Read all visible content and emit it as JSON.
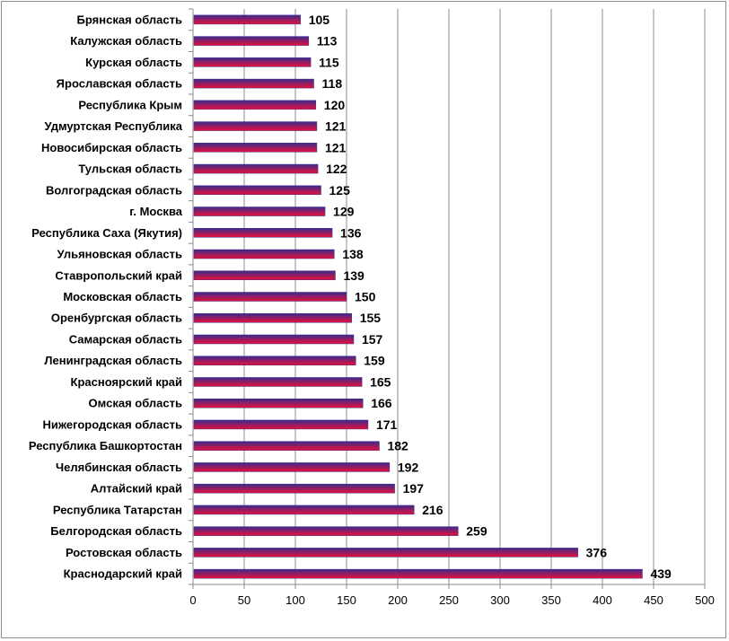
{
  "chart_data": {
    "type": "bar",
    "orientation": "horizontal",
    "title": "",
    "xlabel": "",
    "ylabel": "",
    "xlim": [
      0,
      500
    ],
    "x_ticks": [
      0,
      50,
      100,
      150,
      200,
      250,
      300,
      350,
      400,
      450,
      500
    ],
    "grid": true,
    "legend": "none",
    "bar_gradient": [
      "#3b2a8c",
      "#e8103a"
    ],
    "categories": [
      "Брянская область",
      "Калужская область",
      "Курская область",
      "Ярославская область",
      "Республика Крым",
      "Удмуртская Республика",
      "Новосибирская область",
      "Тульская область",
      "Волгоградская область",
      "г. Москва",
      "Республика Саха (Якутия)",
      "Ульяновская область",
      "Ставропольский край",
      "Московская область",
      "Оренбургская область",
      "Самарская область",
      "Ленинградская область",
      "Красноярский край",
      "Омская область",
      "Нижегородская область",
      "Республика Башкортостан",
      "Челябинская область",
      "Алтайский край",
      "Республика Татарстан",
      "Белгородская область",
      "Ростовская область",
      "Краснодарский край"
    ],
    "values": [
      105,
      113,
      115,
      118,
      120,
      121,
      121,
      122,
      125,
      129,
      136,
      138,
      139,
      150,
      155,
      157,
      159,
      165,
      166,
      171,
      182,
      192,
      197,
      216,
      259,
      376,
      439
    ]
  }
}
